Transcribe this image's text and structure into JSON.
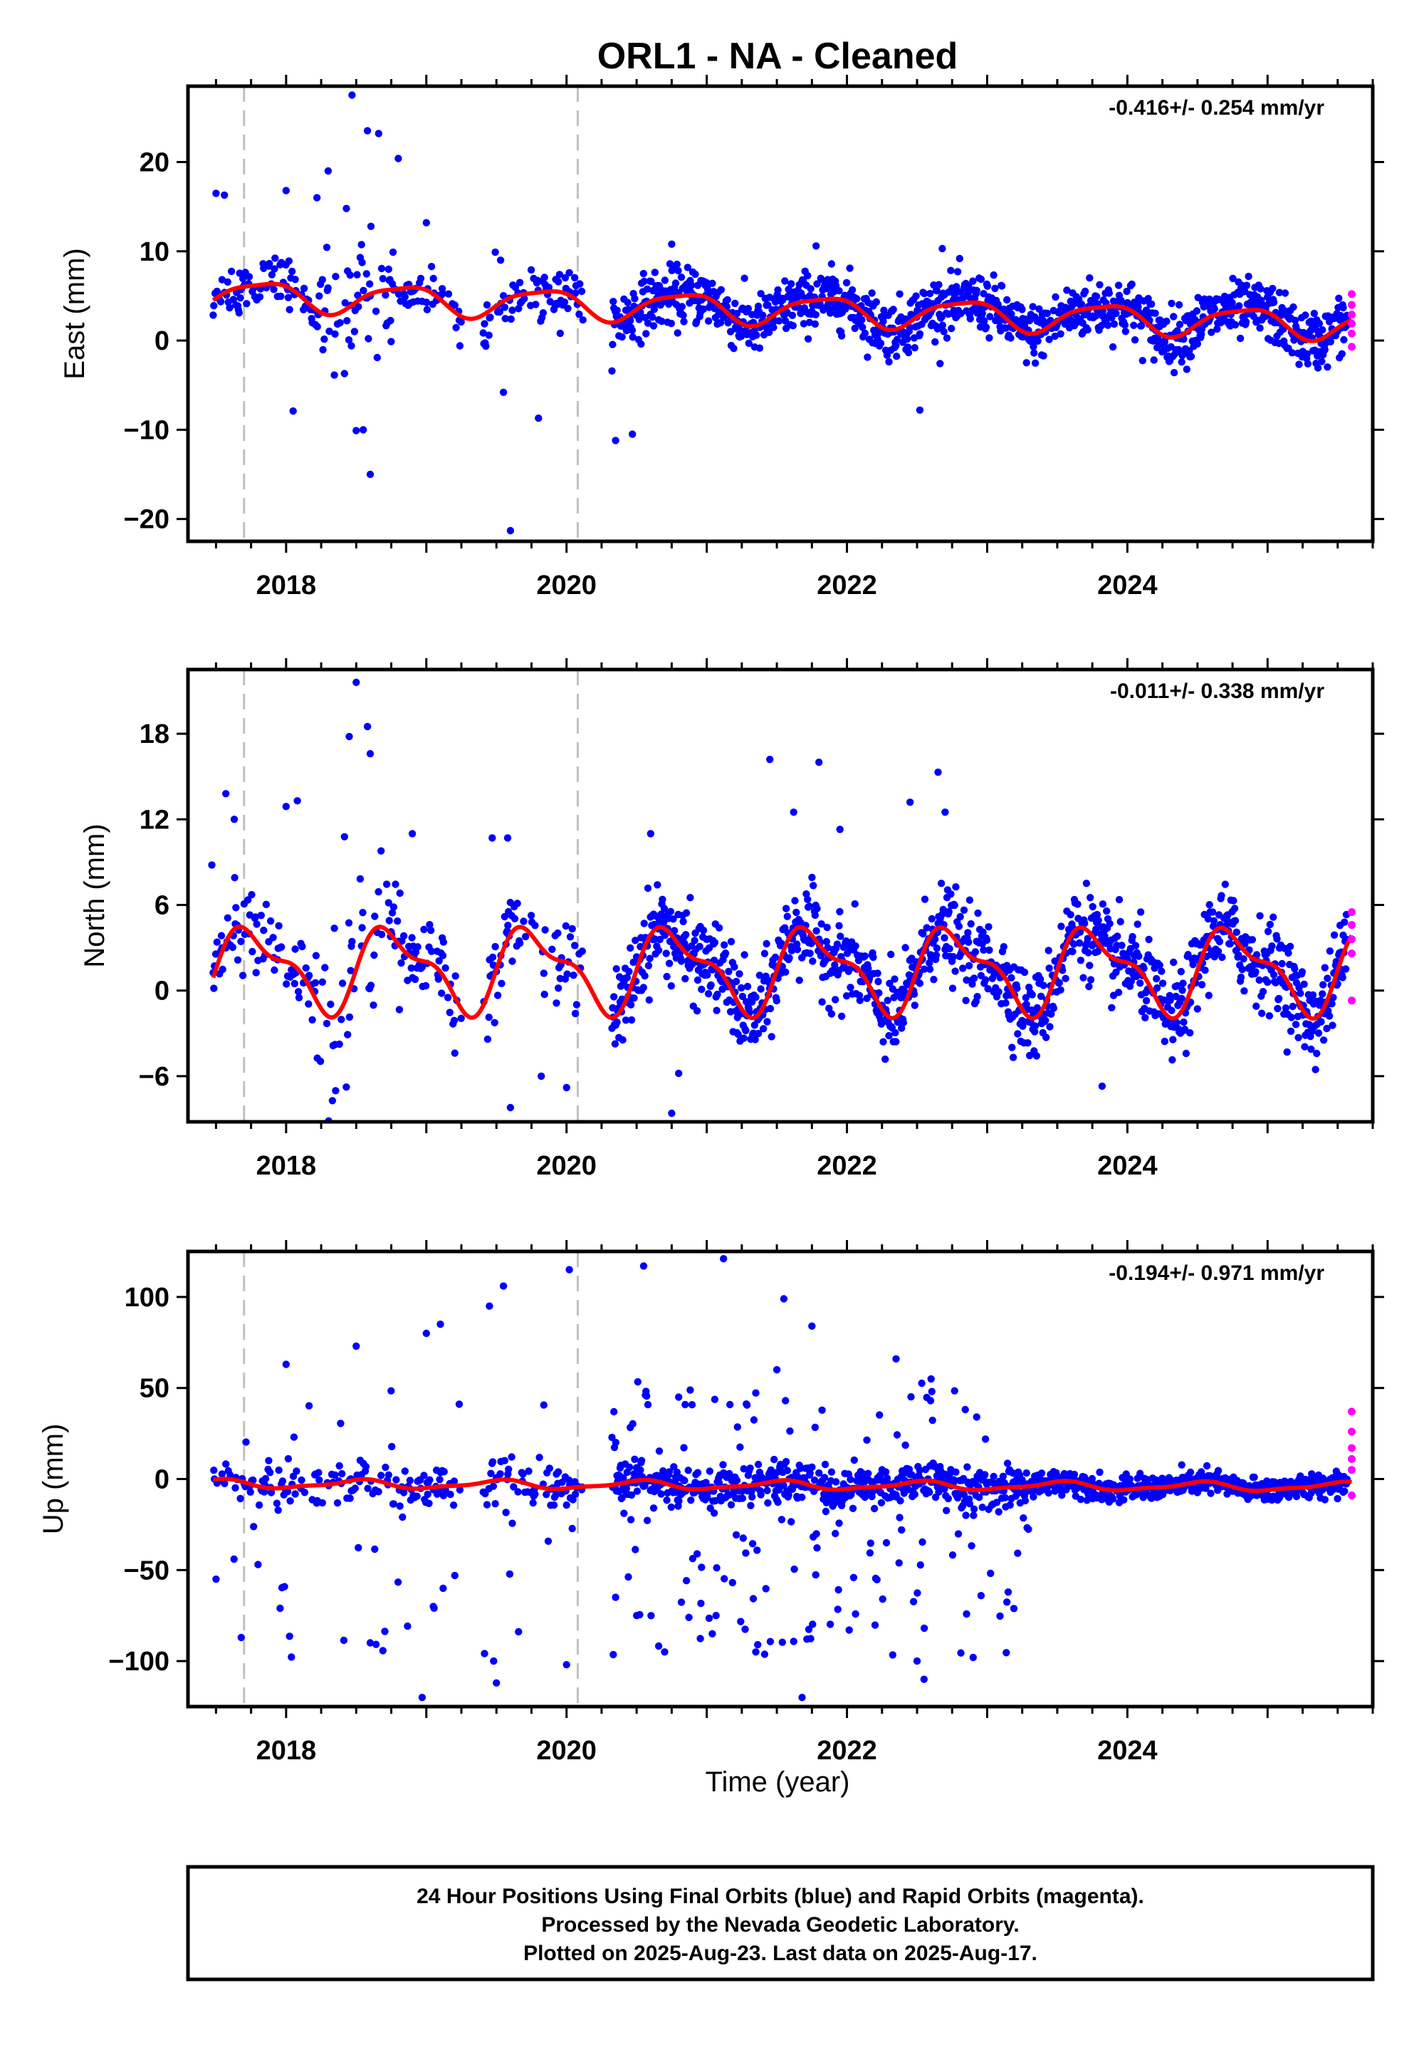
{
  "title": "ORL1  - NA - Cleaned",
  "footer": {
    "lines": [
      "24 Hour Positions Using Final Orbits (blue) and Rapid Orbits (magenta).",
      "Processed by the Nevada Geodetic Laboratory.",
      "Plotted on 2025-Aug-23. Last data on 2025-Aug-17."
    ]
  },
  "colors": {
    "final_orbits": "#0000ff",
    "rapid_orbits": "#ff00ff",
    "trend_fit": "#ff0000",
    "event_lines": "#c0c0c0"
  },
  "chart_data": [
    {
      "type": "scatter",
      "component": "east",
      "ylabel": "East (mm)",
      "xlabel": "",
      "rate_text": "-0.416+/- 0.254 mm/yr",
      "xlim": [
        2017.3,
        2025.75
      ],
      "ylim": [
        -22.5,
        28.5
      ],
      "yticks": [
        -20,
        -10,
        0,
        10,
        20
      ],
      "xticks": [
        2018,
        2020,
        2022,
        2024
      ],
      "event_lines_x": [
        2017.7,
        2020.08
      ],
      "grid": false,
      "model": {
        "offset_mm": 3.5,
        "rate_mm_per_yr": -0.416,
        "annual_amp_mm": 1.6,
        "annual_phase": -0.5,
        "semiannual_amp_mm": 0.4,
        "semiannual_phase": 1.0,
        "noise_mm": 1.6
      },
      "outliers": [
        [
          2017.5,
          16.5
        ],
        [
          2017.56,
          16.3
        ],
        [
          2018.3,
          19.0
        ],
        [
          2018.47,
          27.5
        ],
        [
          2018.58,
          23.5
        ],
        [
          2018.66,
          23.2
        ],
        [
          2018.8,
          20.4
        ],
        [
          2018.0,
          16.8
        ],
        [
          2018.22,
          16.0
        ],
        [
          2018.05,
          -7.9
        ],
        [
          2018.55,
          -10.0
        ],
        [
          2018.5,
          -10.1
        ],
        [
          2018.6,
          -15.0
        ],
        [
          2019.55,
          -5.8
        ],
        [
          2019.8,
          -8.7
        ],
        [
          2019.6,
          -21.3
        ],
        [
          2020.35,
          -11.2
        ],
        [
          2020.47,
          -10.5
        ],
        [
          2019.0,
          13.2
        ],
        [
          2021.78,
          10.6
        ],
        [
          2020.75,
          10.8
        ],
        [
          2022.68,
          10.3
        ],
        [
          2022.52,
          -7.8
        ],
        [
          2020.02,
          7.6
        ],
        [
          2019.53,
          9.0
        ],
        [
          2018.43,
          14.8
        ]
      ],
      "rapid_points": [
        [
          2025.6,
          5.2
        ],
        [
          2025.6,
          4.0
        ],
        [
          2025.6,
          2.9
        ],
        [
          2025.6,
          1.9
        ],
        [
          2025.6,
          0.8
        ],
        [
          2025.6,
          -0.7
        ]
      ]
    },
    {
      "type": "scatter",
      "component": "north",
      "ylabel": "North (mm)",
      "xlabel": "",
      "rate_text": "-0.011+/- 0.338 mm/yr",
      "xlim": [
        2017.3,
        2025.75
      ],
      "ylim": [
        -9.2,
        22.5
      ],
      "yticks": [
        -6,
        0,
        6,
        12,
        18
      ],
      "xticks": [
        2018,
        2020,
        2022,
        2024
      ],
      "event_lines_x": [
        2017.7,
        2020.08
      ],
      "grid": false,
      "model": {
        "offset_mm": 1.5,
        "rate_mm_per_yr": -0.011,
        "annual_amp_mm": 2.6,
        "annual_phase": -0.1,
        "semiannual_amp_mm": 1.1,
        "semiannual_phase": 0.2,
        "noise_mm": 1.5
      },
      "outliers": [
        [
          2017.47,
          8.8
        ],
        [
          2017.57,
          13.8
        ],
        [
          2017.63,
          12.0
        ],
        [
          2018.0,
          12.9
        ],
        [
          2018.08,
          13.3
        ],
        [
          2018.5,
          21.6
        ],
        [
          2018.58,
          18.5
        ],
        [
          2018.45,
          17.8
        ],
        [
          2018.6,
          16.6
        ],
        [
          2018.9,
          11.0
        ],
        [
          2019.47,
          10.7
        ],
        [
          2019.58,
          10.7
        ],
        [
          2019.6,
          -8.2
        ],
        [
          2019.82,
          -6.0
        ],
        [
          2020.0,
          -6.8
        ],
        [
          2020.6,
          11.0
        ],
        [
          2020.75,
          -8.6
        ],
        [
          2021.45,
          16.2
        ],
        [
          2021.62,
          12.5
        ],
        [
          2021.8,
          16.0
        ],
        [
          2021.95,
          11.3
        ],
        [
          2022.45,
          13.2
        ],
        [
          2022.65,
          15.3
        ],
        [
          2022.7,
          12.5
        ],
        [
          2023.82,
          -6.7
        ],
        [
          2020.8,
          -5.8
        ]
      ],
      "rapid_points": [
        [
          2025.6,
          5.5
        ],
        [
          2025.6,
          4.6
        ],
        [
          2025.6,
          3.6
        ],
        [
          2025.6,
          2.6
        ],
        [
          2025.6,
          -0.7
        ]
      ]
    },
    {
      "type": "scatter",
      "component": "up",
      "ylabel": "Up (mm)",
      "xlabel": "Time (year)",
      "rate_text": "-0.194+/- 0.971 mm/yr",
      "xlim": [
        2017.3,
        2025.75
      ],
      "ylim": [
        -125,
        125
      ],
      "yticks": [
        -100,
        -50,
        0,
        50,
        100
      ],
      "xticks": [
        2018,
        2020,
        2022,
        2024
      ],
      "event_lines_x": [
        2017.7,
        2020.08
      ],
      "grid": false,
      "model": {
        "offset_mm": -3.5,
        "rate_mm_per_yr": -0.194,
        "annual_amp_mm": 2.2,
        "annual_phase": 1.5,
        "semiannual_amp_mm": 0.8,
        "semiannual_phase": 0.4,
        "noise_mm": 6.0
      },
      "outliers": [
        [
          2018.5,
          73.0
        ],
        [
          2019.0,
          80.0
        ],
        [
          2019.1,
          85.0
        ],
        [
          2019.45,
          95.0
        ],
        [
          2019.55,
          106.0
        ],
        [
          2020.02,
          115.0
        ],
        [
          2020.55,
          117.0
        ],
        [
          2021.12,
          121.0
        ],
        [
          2021.55,
          99.0
        ],
        [
          2021.75,
          84.0
        ],
        [
          2022.35,
          66.0
        ],
        [
          2018.0,
          63.0
        ],
        [
          2018.97,
          -120.0
        ],
        [
          2019.5,
          -112.0
        ],
        [
          2019.48,
          -100.0
        ],
        [
          2020.0,
          -102.0
        ],
        [
          2021.68,
          -120.0
        ],
        [
          2022.55,
          -110.0
        ],
        [
          2022.9,
          -98.0
        ],
        [
          2017.68,
          -87.0
        ],
        [
          2017.5,
          -55.0
        ],
        [
          2020.35,
          -65.0
        ],
        [
          2020.7,
          -95.0
        ],
        [
          2021.35,
          -95.0
        ],
        [
          2022.5,
          -100.0
        ],
        [
          2018.6,
          -90.0
        ],
        [
          2019.05,
          -70.0
        ],
        [
          2020.8,
          45.0
        ],
        [
          2021.5,
          60.0
        ],
        [
          2022.6,
          55.0
        ],
        [
          2020.5,
          -75.0
        ],
        [
          2019.12,
          -60.0
        ]
      ],
      "rapid_points": [
        [
          2025.6,
          37.0
        ],
        [
          2025.6,
          26.0
        ],
        [
          2025.6,
          17.0
        ],
        [
          2025.6,
          11.0
        ],
        [
          2025.6,
          5.0
        ],
        [
          2025.6,
          -9.0
        ]
      ]
    }
  ]
}
